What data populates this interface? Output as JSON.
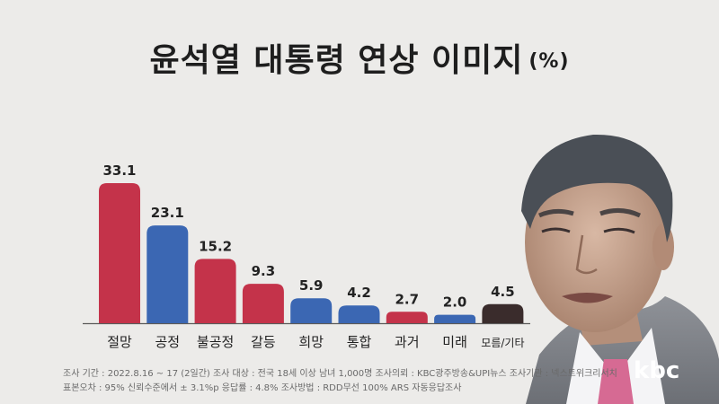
{
  "title": "윤석열 대통령 연상 이미지",
  "title_unit": "(%)",
  "chart_data": {
    "type": "bar",
    "title": "윤석열 대통령 연상 이미지",
    "ylabel": "(%)",
    "ylim": [
      0,
      35
    ],
    "grid": false,
    "categories": [
      "절망",
      "공정",
      "불공정",
      "갈등",
      "희망",
      "통합",
      "과거",
      "미래",
      "모름/기타"
    ],
    "values": [
      33.1,
      23.1,
      15.2,
      9.3,
      5.9,
      4.2,
      2.7,
      2.0,
      4.5
    ],
    "value_labels": [
      "33.1",
      "23.1",
      "15.2",
      "9.3",
      "5.9",
      "4.2",
      "2.7",
      "2.0",
      "4.5"
    ],
    "colors": [
      "#c4334a",
      "#3b67b3",
      "#c4334a",
      "#c4334a",
      "#3b67b3",
      "#3b67b3",
      "#c4334a",
      "#3b67b3",
      "#3a2c2c"
    ]
  },
  "footer": {
    "line1": "조사 기간 : 2022.8.16 ~ 17 (2일간)   조사 대상 : 전국 18세 이상 남녀 1,000명 조사의뢰 : KBC광주방송&UPI뉴스   조사기관 : 넥스트위크리서치",
    "line2": "표본오차 : 95% 신뢰수준에서 ± 3.1%p   응답률 : 4.8%   조사방법 : RDD무선 100% ARS 자동응답조사"
  },
  "logo": "kbc",
  "icons": {
    "portrait": "person-portrait"
  }
}
